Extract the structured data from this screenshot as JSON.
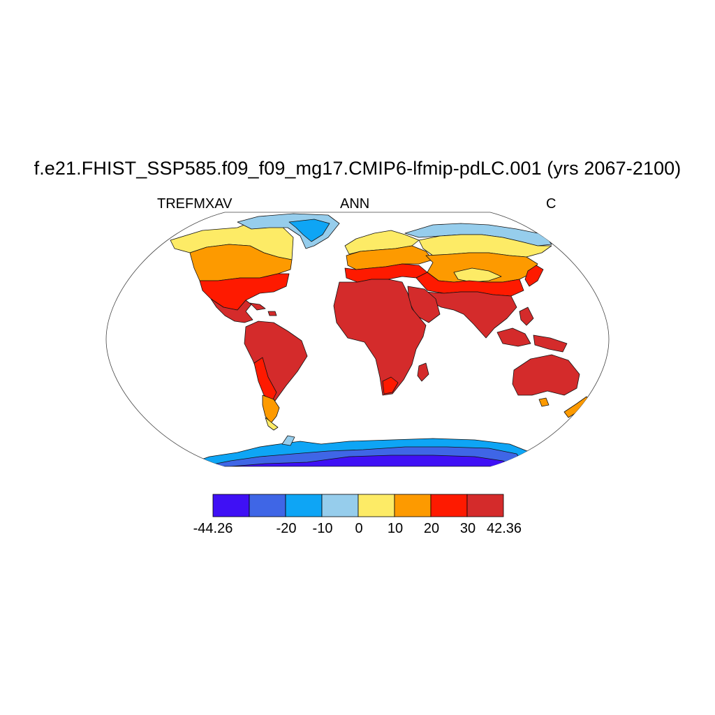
{
  "title": "f.e21.FHIST_SSP585.f09_f09_mg17.CMIP6-lfmip-pdLC.001 (yrs 2067-2100)",
  "subtitle_left": "TREFMXAV",
  "subtitle_center": "ANN",
  "subtitle_right": "C",
  "colorbar": {
    "min_label": "-44.26",
    "max_label": "42.36",
    "tick_labels": [
      "-20",
      "-10",
      "0",
      "10",
      "20",
      "30"
    ],
    "colors": [
      "#3f10f5",
      "#3f66e6",
      "#0ea5f5",
      "#96cdec",
      "#fdeb66",
      "#fd9a00",
      "#fe1a00",
      "#d42b2b"
    ]
  },
  "colors": {
    "ocean": "#ffffff",
    "coast": "#000000"
  }
}
